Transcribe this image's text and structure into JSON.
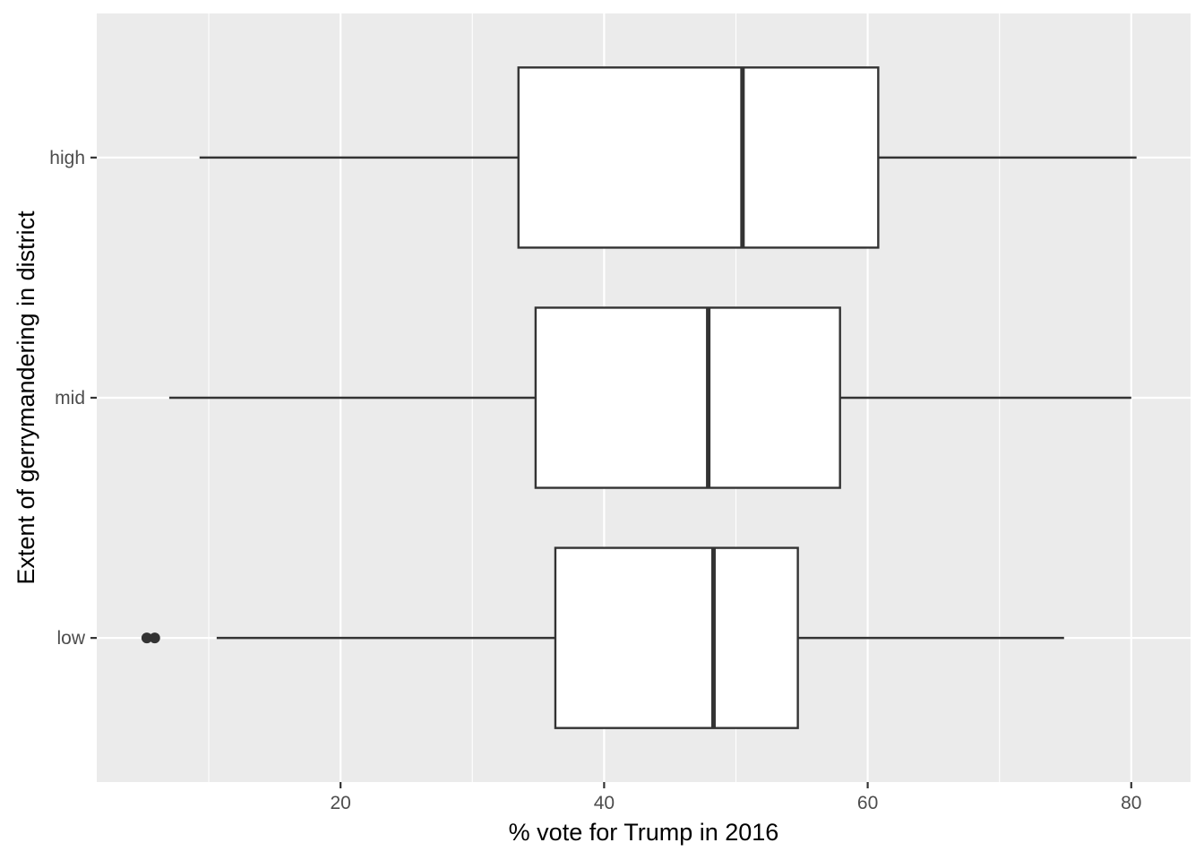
{
  "chart_data": {
    "type": "boxplot",
    "orientation": "horizontal",
    "xlabel": "% vote for Trump in 2016",
    "ylabel": "Extent of gerrymandering in district",
    "xlim": [
      1.5,
      84.5
    ],
    "xticks": [
      20,
      40,
      60,
      80
    ],
    "xtick_labels": [
      "20",
      "40",
      "60",
      "80"
    ],
    "grid": true,
    "legend": "none",
    "categories": [
      "high",
      "mid",
      "low"
    ],
    "boxes": [
      {
        "category": "high",
        "whisker_low": 9.3,
        "q1": 33.5,
        "median": 50.5,
        "q3": 60.8,
        "whisker_high": 80.4,
        "outliers": []
      },
      {
        "category": "mid",
        "whisker_low": 7.0,
        "q1": 34.8,
        "median": 47.9,
        "q3": 57.9,
        "whisker_high": 80.0,
        "outliers": []
      },
      {
        "category": "low",
        "whisker_low": 10.6,
        "q1": 36.3,
        "median": 48.3,
        "q3": 54.7,
        "whisker_high": 74.9,
        "outliers": [
          5.3,
          5.9
        ]
      }
    ],
    "colors": {
      "panel": "#ebebeb",
      "grid_major": "#ffffff",
      "box_fill": "#ffffff",
      "box_stroke": "#333333",
      "tick_text": "#4d4d4d"
    }
  }
}
